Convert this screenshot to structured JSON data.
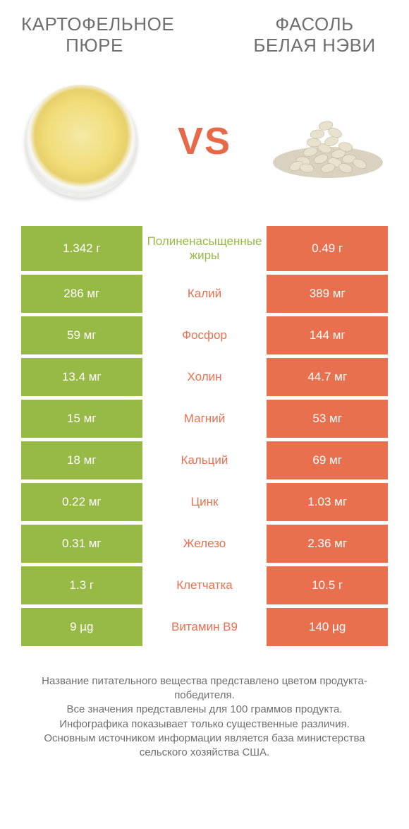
{
  "colors": {
    "green": "#97b946",
    "orange": "#e8704f",
    "text_gray": "#6f6f6f",
    "white": "#ffffff"
  },
  "product_left": "КАРТОФЕЛЬНОЕ ПЮРЕ",
  "product_right": "ФАСОЛЬ БЕЛАЯ НЭВИ",
  "vs": "VS",
  "rows": [
    {
      "left": "1.342 г",
      "mid": "Полиненасыщенные жиры",
      "right": "0.49 г",
      "winner": "left"
    },
    {
      "left": "286 мг",
      "mid": "Калий",
      "right": "389 мг",
      "winner": "right"
    },
    {
      "left": "59 мг",
      "mid": "Фосфор",
      "right": "144 мг",
      "winner": "right"
    },
    {
      "left": "13.4 мг",
      "mid": "Холин",
      "right": "44.7 мг",
      "winner": "right"
    },
    {
      "left": "15 мг",
      "mid": "Магний",
      "right": "53 мг",
      "winner": "right"
    },
    {
      "left": "18 мг",
      "mid": "Кальций",
      "right": "69 мг",
      "winner": "right"
    },
    {
      "left": "0.22 мг",
      "mid": "Цинк",
      "right": "1.03 мг",
      "winner": "right"
    },
    {
      "left": "0.31 мг",
      "mid": "Железо",
      "right": "2.36 мг",
      "winner": "right"
    },
    {
      "left": "1.3 г",
      "mid": "Клетчатка",
      "right": "10.5 г",
      "winner": "right"
    },
    {
      "left": "9 µg",
      "mid": "Витамин B9",
      "right": "140 µg",
      "winner": "right"
    }
  ],
  "footer": "Название питательного вещества представлено цветом продукта-победителя.\nВсе значения представлены для 100 граммов продукта.\nИнфографика показывает только существенные различия.\nОсновным источником информации является база министерства сельского хозяйства США."
}
